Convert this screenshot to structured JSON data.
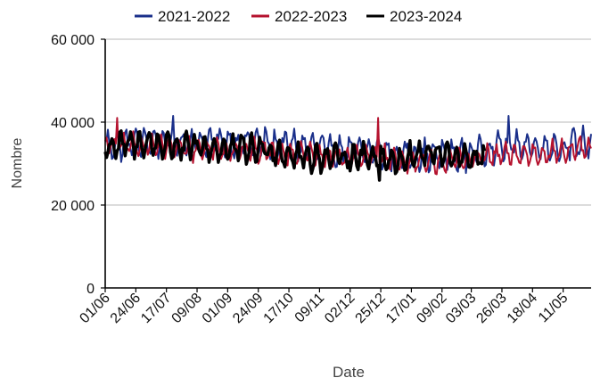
{
  "chart_data": {
    "type": "line",
    "xlabel": "Date",
    "ylabel": "Nombre",
    "ylim": [
      0,
      60000
    ],
    "y_ticks": [
      {
        "value": 0,
        "label": "0"
      },
      {
        "value": 20000,
        "label": "20 000"
      },
      {
        "value": 40000,
        "label": "40 000"
      },
      {
        "value": 60000,
        "label": "60 000"
      }
    ],
    "x_tick_labels": [
      "01/06",
      "24/06",
      "17/07",
      "09/08",
      "01/09",
      "24/09",
      "17/10",
      "09/11",
      "02/12",
      "25/12",
      "17/01",
      "09/02",
      "03/03",
      "26/03",
      "18/04",
      "11/05"
    ],
    "x_tick_day_index": [
      0,
      23,
      46,
      69,
      92,
      115,
      138,
      161,
      184,
      207,
      230,
      253,
      275,
      298,
      321,
      344
    ],
    "x_range_days": [
      0,
      365
    ],
    "grid": "horizontal",
    "legend_position": "top",
    "series": [
      {
        "name": "2021-2022",
        "color": "#1a2f8a",
        "stroke_width": 2,
        "length_days": 365,
        "anchors": [
          [
            0,
            34500
          ],
          [
            30,
            35000
          ],
          [
            60,
            35500
          ],
          [
            90,
            35200
          ],
          [
            120,
            35000
          ],
          [
            150,
            34000
          ],
          [
            180,
            33000
          ],
          [
            210,
            32500
          ],
          [
            240,
            32000
          ],
          [
            270,
            32000
          ],
          [
            290,
            34000
          ],
          [
            310,
            34500
          ],
          [
            340,
            34000
          ],
          [
            365,
            35000
          ]
        ],
        "amplitude": 4000
      },
      {
        "name": "2022-2023",
        "color": "#b5122e",
        "stroke_width": 2,
        "length_days": 365,
        "anchors": [
          [
            0,
            34500
          ],
          [
            30,
            34500
          ],
          [
            60,
            33500
          ],
          [
            90,
            33500
          ],
          [
            120,
            33000
          ],
          [
            150,
            32000
          ],
          [
            180,
            31500
          ],
          [
            205,
            32000
          ],
          [
            215,
            31000
          ],
          [
            240,
            30000
          ],
          [
            270,
            31000
          ],
          [
            300,
            32000
          ],
          [
            330,
            32500
          ],
          [
            365,
            33500
          ]
        ],
        "amplitude": 3000
      },
      {
        "name": "2023-2024",
        "color": "#000000",
        "stroke_width": 3.5,
        "length_days": 285,
        "anchors": [
          [
            0,
            34000
          ],
          [
            30,
            35000
          ],
          [
            60,
            34000
          ],
          [
            90,
            33500
          ],
          [
            120,
            33500
          ],
          [
            150,
            31500
          ],
          [
            180,
            31500
          ],
          [
            205,
            32000
          ],
          [
            215,
            30500
          ],
          [
            240,
            32500
          ],
          [
            270,
            31500
          ],
          [
            285,
            31000
          ]
        ],
        "amplitude": 3500
      }
    ]
  }
}
